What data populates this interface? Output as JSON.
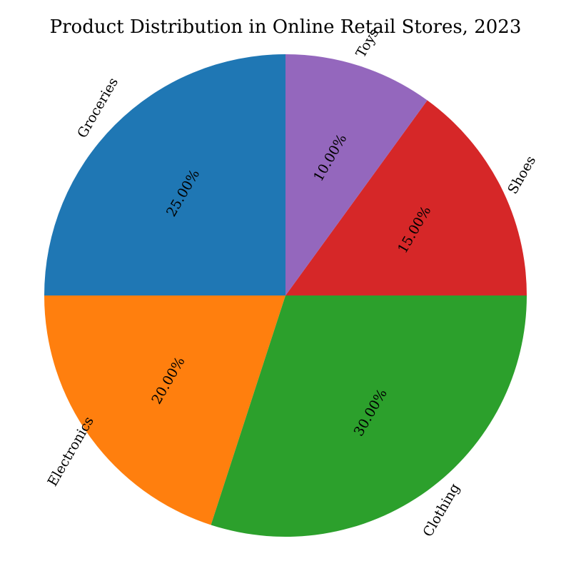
{
  "chart_data": {
    "type": "pie",
    "title": "Product Distribution in Online Retail Stores, 2023",
    "slices": [
      {
        "label": "Groceries",
        "value": 25,
        "display": "25.00%",
        "color": "#1f77b4"
      },
      {
        "label": "Electronics",
        "value": 20,
        "display": "20.00%",
        "color": "#ff7f0e"
      },
      {
        "label": "Clothing",
        "value": 30,
        "display": "30.00%",
        "color": "#2ca02c"
      },
      {
        "label": "Shoes",
        "value": 15,
        "display": "15.00%",
        "color": "#d62728"
      },
      {
        "label": "Toys",
        "value": 10,
        "display": "10.00%",
        "color": "#9467bd"
      }
    ],
    "start_angle_deg": 90,
    "direction": "counterclockwise",
    "label_rotation_deg": -60
  }
}
